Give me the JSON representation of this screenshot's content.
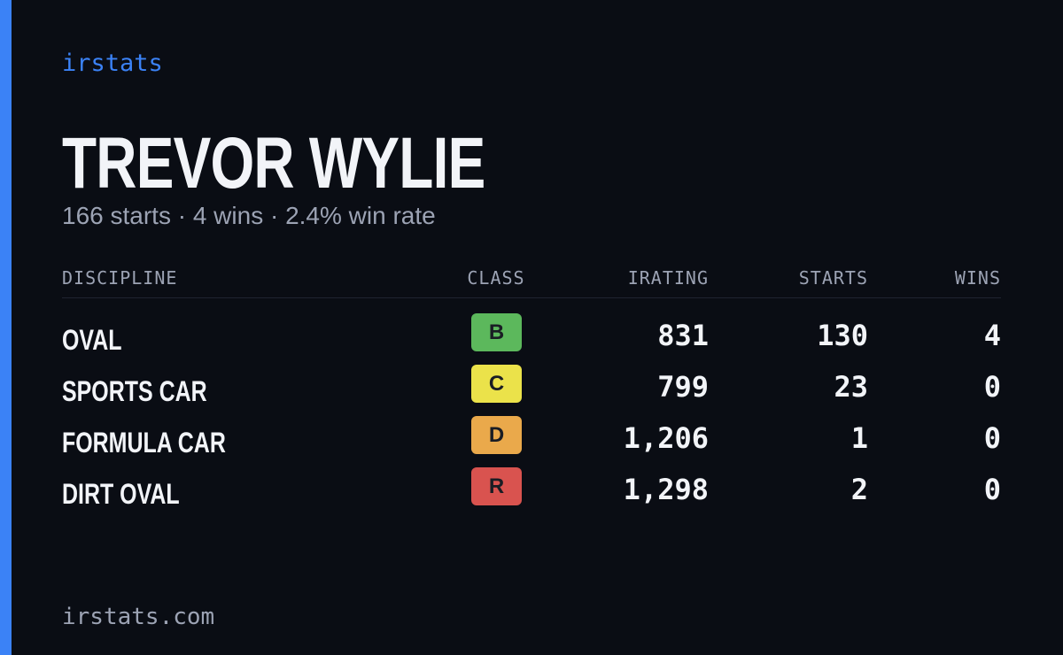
{
  "brand": "irstats",
  "driver": {
    "name": "TREVOR WYLIE",
    "summary": "166 starts · 4 wins · 2.4% win rate"
  },
  "table": {
    "headers": [
      "DISCIPLINE",
      "CLASS",
      "IRATING",
      "STARTS",
      "WINS"
    ],
    "rows": [
      {
        "discipline": "OVAL",
        "class": "B",
        "class_color": "#5cb85c",
        "irating": "831",
        "starts": "130",
        "wins": "4"
      },
      {
        "discipline": "SPORTS CAR",
        "class": "C",
        "class_color": "#ebe24a",
        "irating": "799",
        "starts": "23",
        "wins": "0"
      },
      {
        "discipline": "FORMULA CAR",
        "class": "D",
        "class_color": "#eaa94b",
        "irating": "1,206",
        "starts": "1",
        "wins": "0"
      },
      {
        "discipline": "DIRT OVAL",
        "class": "R",
        "class_color": "#d9534f",
        "irating": "1,298",
        "starts": "2",
        "wins": "0"
      }
    ]
  },
  "footer": "irstats.com"
}
